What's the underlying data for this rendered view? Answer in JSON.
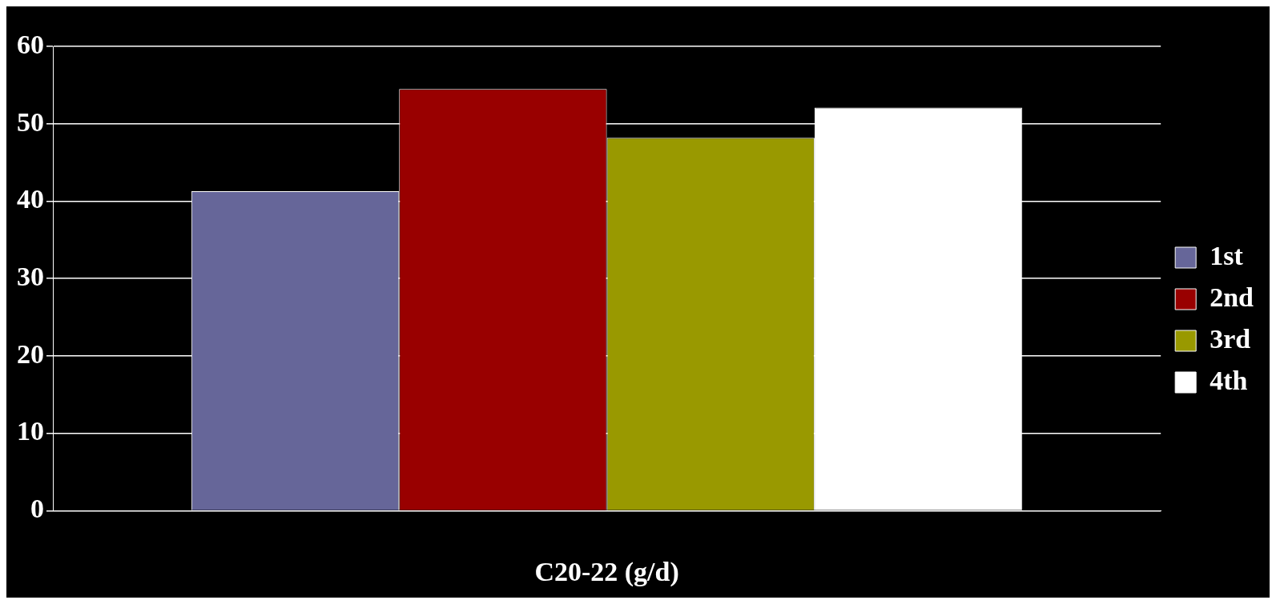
{
  "chart_data": {
    "type": "bar",
    "xlabel": "C20-22 (g/d)",
    "categories": [
      null
    ],
    "series": [
      {
        "name": "1st",
        "color": "#666699",
        "values": [
          41.3
        ]
      },
      {
        "name": "2nd",
        "color": "#990000",
        "values": [
          54.5
        ]
      },
      {
        "name": "3rd",
        "color": "#999900",
        "values": [
          48.2
        ]
      },
      {
        "name": "4th",
        "color": "#ffffff",
        "values": [
          52.1
        ]
      }
    ],
    "ylim": [
      0,
      60
    ],
    "yticks": [
      0,
      10,
      20,
      30,
      40,
      50,
      60
    ],
    "grid": "y",
    "legend": "right"
  }
}
